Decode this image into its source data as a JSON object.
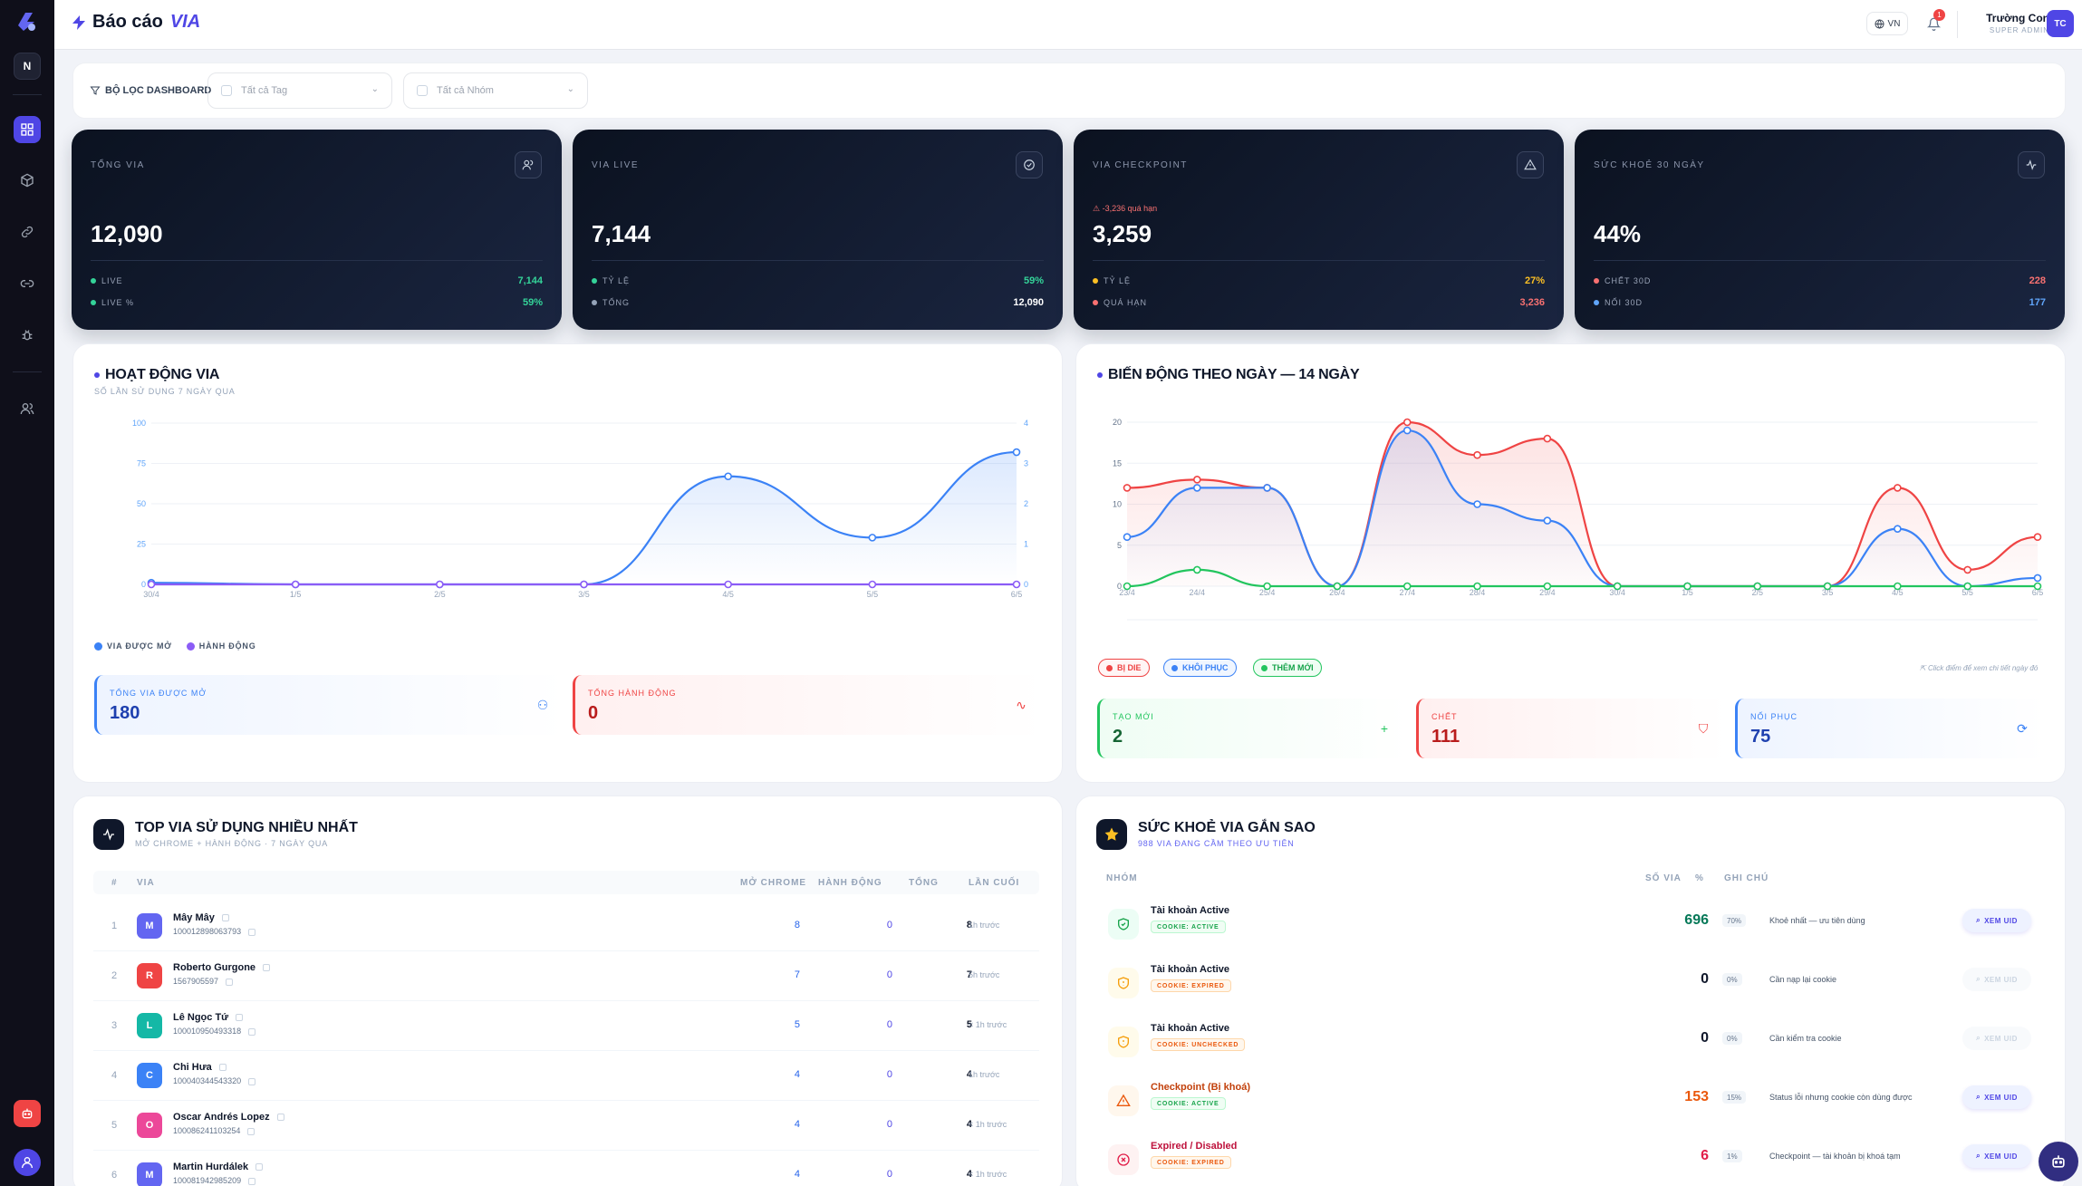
{
  "sidebar": {
    "workspace": "N"
  },
  "header": {
    "title": "Báo cáo",
    "title_accent": "VIA",
    "lang": "VN",
    "notif_count": "1",
    "user_name": "Trường Con",
    "user_role": "SUPER ADMIN",
    "user_initials": "TC"
  },
  "filters": {
    "label": "BỘ LỌC DASHBOARD",
    "tag_placeholder": "Tất cả Tag",
    "group_placeholder": "Tất cả Nhóm"
  },
  "kpis": [
    {
      "label": "TỔNG VIA",
      "icon": "users-icon",
      "value": "12,090",
      "warn": "",
      "row1_label": "LIVE",
      "row1_value": "7,144",
      "row1_color": "#34d399",
      "row2_label": "LIVE %",
      "row2_value": "59%",
      "row2_color": "#34d399"
    },
    {
      "label": "VIA LIVE",
      "icon": "check-circle-icon",
      "value": "7,144",
      "warn": "",
      "row1_label": "TỶ LỆ",
      "row1_value": "59%",
      "row1_color": "#34d399",
      "row2_label": "TỔNG",
      "row2_value": "12,090",
      "row2_color": "#ffffff"
    },
    {
      "label": "VIA CHECKPOINT",
      "icon": "warning-icon",
      "value": "3,259",
      "warn": "⚠ -3,236 quá hạn",
      "row1_label": "TỶ LỆ",
      "row1_value": "27%",
      "row1_color": "#fbbf24",
      "row2_label": "QUÁ HẠN",
      "row2_value": "3,236",
      "row2_color": "#f87171"
    },
    {
      "label": "SỨC KHOẺ 30 NGÀY",
      "icon": "activity-icon",
      "value": "44%",
      "warn": "",
      "row1_label": "CHẾT 30D",
      "row1_value": "228",
      "row1_color": "#f87171",
      "row2_label": "NỐI 30D",
      "row2_value": "177",
      "row2_color": "#60a5fa"
    }
  ],
  "activity": {
    "title": "HOẠT ĐỘNG VIA",
    "subtitle": "SỐ LẦN SỬ DỤNG 7 NGÀY QUA",
    "legend_opened": "VIA ĐƯỢC MỞ",
    "legend_actions": "HÀNH ĐỘNG",
    "total_opened_label": "TỔNG VIA ĐƯỢC MỞ",
    "total_opened_value": "180",
    "total_actions_label": "TỔNG HÀNH ĐỘNG",
    "total_actions_value": "0"
  },
  "daily": {
    "title": "BIẾN ĐỘNG THEO NGÀY — 14 NGÀY",
    "pill_dead": "BỊ DIE",
    "pill_restored": "KHÔI PHỤC",
    "pill_new": "THÊM MỚI",
    "hint": "Click điểm để xem chi tiết ngày đó",
    "new_label": "TẠO MỚI",
    "new_value": "2",
    "dead_label": "CHẾT",
    "dead_value": "111",
    "restored_label": "NỐI PHỤC",
    "restored_value": "75"
  },
  "top_via": {
    "title": "TOP VIA SỬ DỤNG NHIỀU NHẤT",
    "subtitle": "MỞ CHROME + HÀNH ĐỘNG · 7 NGÀY QUA",
    "columns": [
      "#",
      "VIA",
      "MỞ CHROME",
      "HÀNH ĐỘNG",
      "TỔNG",
      "LẦN CUỐI"
    ],
    "rows": [
      {
        "rank": "1",
        "initial": "M",
        "color": "#6366f1",
        "name": "Mây Mây",
        "uid": "100012898063793",
        "chrome": "8",
        "actions": "0",
        "total": "8",
        "last": "1h trước"
      },
      {
        "rank": "2",
        "initial": "R",
        "color": "#ef4444",
        "name": "Roberto Gurgone",
        "uid": "1567905597",
        "chrome": "7",
        "actions": "0",
        "total": "7",
        "last": "5h trước"
      },
      {
        "rank": "3",
        "initial": "L",
        "color": "#14b8a6",
        "name": "Lê Ngọc Tứ",
        "uid": "100010950493318",
        "chrome": "5",
        "actions": "0",
        "total": "5",
        "last": "< 1h trước"
      },
      {
        "rank": "4",
        "initial": "C",
        "color": "#3b82f6",
        "name": "Chi Hưa",
        "uid": "100040344543320",
        "chrome": "4",
        "actions": "0",
        "total": "4",
        "last": "1h trước"
      },
      {
        "rank": "5",
        "initial": "O",
        "color": "#ec4899",
        "name": "Oscar Andrés Lopez",
        "uid": "100086241103254",
        "chrome": "4",
        "actions": "0",
        "total": "4",
        "last": "< 1h trước"
      },
      {
        "rank": "6",
        "initial": "M",
        "color": "#6366f1",
        "name": "Martin Hurdálek",
        "uid": "100081942985209",
        "chrome": "4",
        "actions": "0",
        "total": "4",
        "last": "< 1h trước"
      }
    ]
  },
  "health": {
    "title": "SỨC KHOẺ VIA GẮN SAO",
    "subtitle": "988 VIA ĐANG CẦM THEO ƯU TIÊN",
    "columns": [
      "NHÓM",
      "SỐ VIA",
      "%",
      "GHI CHÚ"
    ],
    "button": "XEM UID",
    "rows": [
      {
        "name": "Tài khoản Active",
        "badge": "COOKIE: ACTIVE",
        "count": "696",
        "pct": "70%",
        "note": "Khoẻ nhất — ưu tiên dùng",
        "tone": "green",
        "disabled": false
      },
      {
        "name": "Tài khoản Active",
        "badge": "COOKIE: EXPIRED",
        "count": "0",
        "pct": "0%",
        "note": "Cần nạp lại cookie",
        "tone": "amber",
        "disabled": true
      },
      {
        "name": "Tài khoản Active",
        "badge": "COOKIE: UNCHECKED",
        "count": "0",
        "pct": "0%",
        "note": "Cần kiểm tra cookie",
        "tone": "amber",
        "disabled": true
      },
      {
        "name": "Checkpoint (Bị khoá)",
        "badge": "COOKIE: ACTIVE",
        "count": "153",
        "pct": "15%",
        "note": "Status lỗi nhưng cookie còn dùng được",
        "tone": "orange",
        "disabled": false
      },
      {
        "name": "Expired / Disabled",
        "badge": "COOKIE: EXPIRED",
        "count": "6",
        "pct": "1%",
        "note": "Checkpoint — tài khoản bị khoá tạm",
        "tone": "red",
        "disabled": false
      }
    ]
  },
  "chart_data": [
    {
      "type": "line",
      "categories": [
        "30/4",
        "1/5",
        "2/5",
        "3/5",
        "4/5",
        "5/5",
        "6/5"
      ],
      "series": [
        {
          "name": "VIA ĐƯỢC MỞ",
          "color": "#3b82f6",
          "values": [
            1,
            0,
            0,
            0,
            67,
            29,
            82
          ]
        },
        {
          "name": "HÀNH ĐỘNG",
          "color": "#8b5cf6",
          "values": [
            0,
            0,
            0,
            0,
            0,
            0,
            0
          ]
        }
      ],
      "yticks_left": [
        "0",
        "25",
        "50",
        "75",
        "100"
      ],
      "yticks_right": [
        "0",
        "1",
        "2",
        "3",
        "4"
      ],
      "ylim": [
        0,
        100
      ]
    },
    {
      "type": "line",
      "categories": [
        "23/4",
        "24/4",
        "25/4",
        "26/4",
        "27/4",
        "28/4",
        "29/4",
        "30/4",
        "1/5",
        "2/5",
        "3/5",
        "4/5",
        "5/5",
        "6/5"
      ],
      "series": [
        {
          "name": "BỊ DIE",
          "color": "#ef4444",
          "values": [
            12,
            13,
            12,
            0,
            20,
            16,
            18,
            0,
            0,
            0,
            0,
            12,
            2,
            6
          ]
        },
        {
          "name": "KHÔI PHỤC",
          "color": "#3b82f6",
          "values": [
            6,
            12,
            12,
            0,
            19,
            10,
            8,
            0,
            0,
            0,
            0,
            7,
            0,
            1
          ]
        },
        {
          "name": "THÊM MỚI",
          "color": "#22c55e",
          "values": [
            0,
            2,
            0,
            0,
            0,
            0,
            0,
            0,
            0,
            0,
            0,
            0,
            0,
            0
          ]
        }
      ],
      "yticks": [
        "0",
        "5",
        "10",
        "15",
        "20"
      ],
      "ylim": [
        0,
        20
      ]
    }
  ]
}
